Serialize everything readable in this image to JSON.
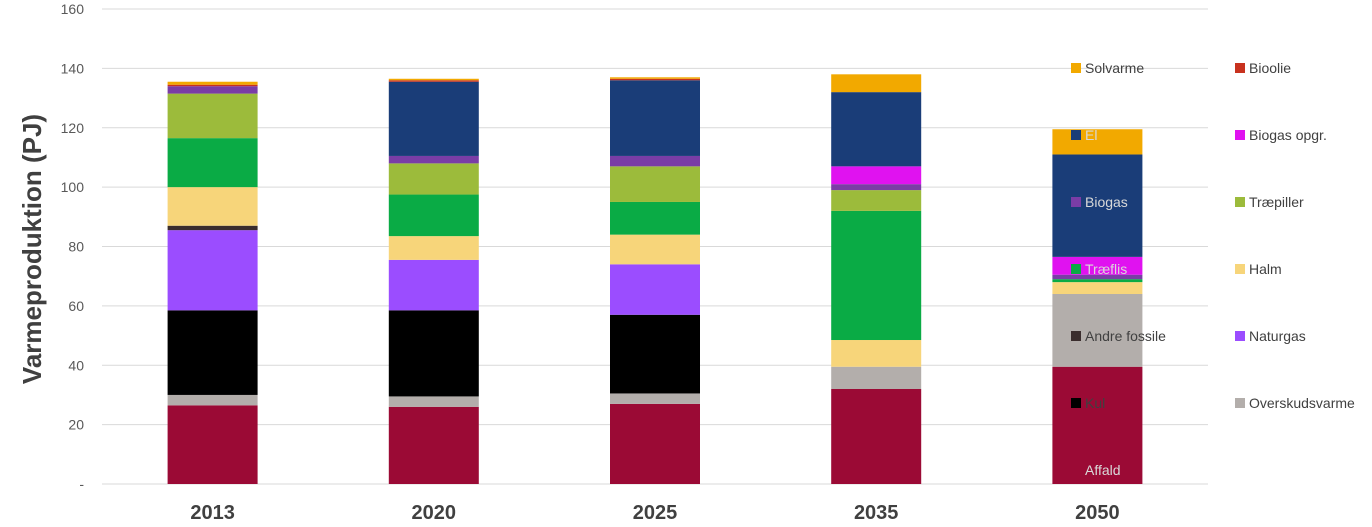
{
  "chart_data": {
    "type": "bar",
    "stacked": true,
    "ylabel": "Varmeproduktion (PJ)",
    "ylim": [
      0,
      160
    ],
    "yticks": [
      {
        "value": 0,
        "label": "-"
      },
      {
        "value": 20,
        "label": "20"
      },
      {
        "value": 40,
        "label": "40"
      },
      {
        "value": 60,
        "label": "60"
      },
      {
        "value": 80,
        "label": "80"
      },
      {
        "value": 100,
        "label": "100"
      },
      {
        "value": 120,
        "label": "120"
      },
      {
        "value": 140,
        "label": "140"
      },
      {
        "value": 160,
        "label": "160"
      }
    ],
    "grid": true,
    "categories": [
      "2013",
      "2020",
      "2025",
      "2035",
      "2050"
    ],
    "series": [
      {
        "name": "Affald",
        "color": "#9b0a35",
        "values": [
          26.5,
          26,
          27,
          32,
          39.5
        ]
      },
      {
        "name": "Overskudsvarme",
        "color": "#b3aeab",
        "values": [
          3.5,
          3.5,
          3.5,
          7.5,
          24.5
        ]
      },
      {
        "name": "Kul",
        "color": "#000000",
        "values": [
          28.5,
          29,
          26.5,
          0,
          0
        ]
      },
      {
        "name": "Naturgas",
        "color": "#9b4dff",
        "values": [
          27,
          17,
          17,
          0,
          0
        ]
      },
      {
        "name": "Andre fossile",
        "color": "#3a2d2d",
        "values": [
          1.5,
          0,
          0,
          0,
          0
        ]
      },
      {
        "name": "Halm",
        "color": "#f7d57a",
        "values": [
          13,
          8,
          10,
          9,
          4
        ]
      },
      {
        "name": "Træflis",
        "color": "#0aab45",
        "values": [
          16.5,
          14,
          11,
          43.5,
          1
        ]
      },
      {
        "name": "Træpiller",
        "color": "#9cbb3b",
        "values": [
          15,
          10.5,
          12,
          7,
          0
        ]
      },
      {
        "name": "Biogas",
        "color": "#7a3da6",
        "values": [
          2.5,
          2.5,
          3.5,
          2,
          1.5
        ]
      },
      {
        "name": "Biogas opgr.",
        "color": "#e012f0",
        "values": [
          0,
          0,
          0,
          6,
          6
        ]
      },
      {
        "name": "El",
        "color": "#1a3d78",
        "values": [
          0,
          25,
          25.5,
          25,
          34.5
        ]
      },
      {
        "name": "Bioolie",
        "color": "#c8321e",
        "values": [
          0.5,
          0.5,
          0.5,
          0,
          0
        ]
      },
      {
        "name": "Solvarme",
        "color": "#f2a900",
        "values": [
          1,
          0.5,
          0.5,
          6,
          8.5
        ]
      }
    ],
    "legend_left": [
      "Solvarme",
      "El",
      "Biogas",
      "Træflis",
      "Andre fossile",
      "Kul",
      "Affald"
    ],
    "legend_right": [
      "Bioolie",
      "Biogas opgr.",
      "Træpiller",
      "Halm",
      "Naturgas",
      "Overskudsvarme"
    ],
    "legend_left_colors": [
      "#f2a900",
      "#1a3d78",
      "#7a3da6",
      "#0aab45",
      "#3a2d2d",
      "#000000",
      "#9b0a35"
    ],
    "legend_right_colors": [
      "#c8321e",
      "#e012f0",
      "#9cbb3b",
      "#f7d57a",
      "#9b4dff",
      "#b3aeab"
    ]
  }
}
